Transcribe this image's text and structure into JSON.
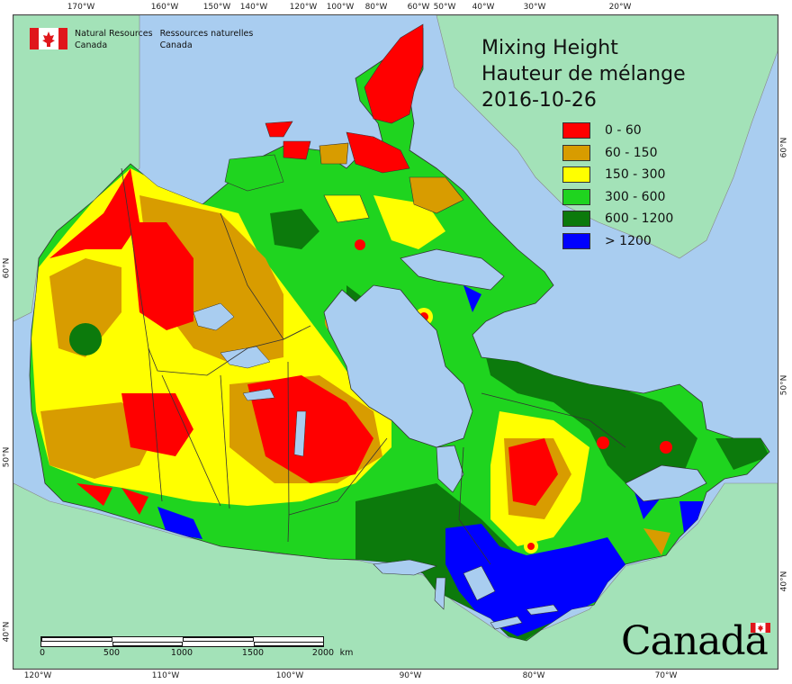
{
  "logo": {
    "name_en_1": "Natural Resources",
    "name_en_2": "Canada",
    "name_fr_1": "Ressources naturelles",
    "name_fr_2": "Canada"
  },
  "title": {
    "line1": "Mixing Height",
    "line2": "Hauteur de mélange",
    "date": "2016-10-26"
  },
  "legend": [
    {
      "label": "0 - 60",
      "color": "#ff0000"
    },
    {
      "label": "60 - 150",
      "color": "#d89c00"
    },
    {
      "label": "150 - 300",
      "color": "#ffff00"
    },
    {
      "label": "300 - 600",
      "color": "#1fd41f"
    },
    {
      "label": "600 - 1200",
      "color": "#0c7a0c"
    },
    {
      "label": "> 1200",
      "color": "#0000ff"
    }
  ],
  "graticule": {
    "top": [
      "170°W",
      "160°W",
      "150°W",
      "140°W",
      "120°W",
      "100°W",
      "80°W",
      "60°W",
      "50°W",
      "40°W",
      "30°W",
      "20°W"
    ],
    "bottom": [
      "120°W",
      "110°W",
      "100°W",
      "90°W",
      "80°W",
      "70°W"
    ],
    "left": [
      "60°N",
      "50°N",
      "40°N"
    ],
    "right": [
      "60°N",
      "50°N",
      "40°N"
    ]
  },
  "scale": {
    "labels": [
      "0",
      "500",
      "1000",
      "1500",
      "2000"
    ],
    "unit": "km"
  },
  "wordmark": "Canada",
  "colors": {
    "ocean": "#a9cdf0",
    "land_outside": "#a3e2b8",
    "border": "#333333"
  }
}
